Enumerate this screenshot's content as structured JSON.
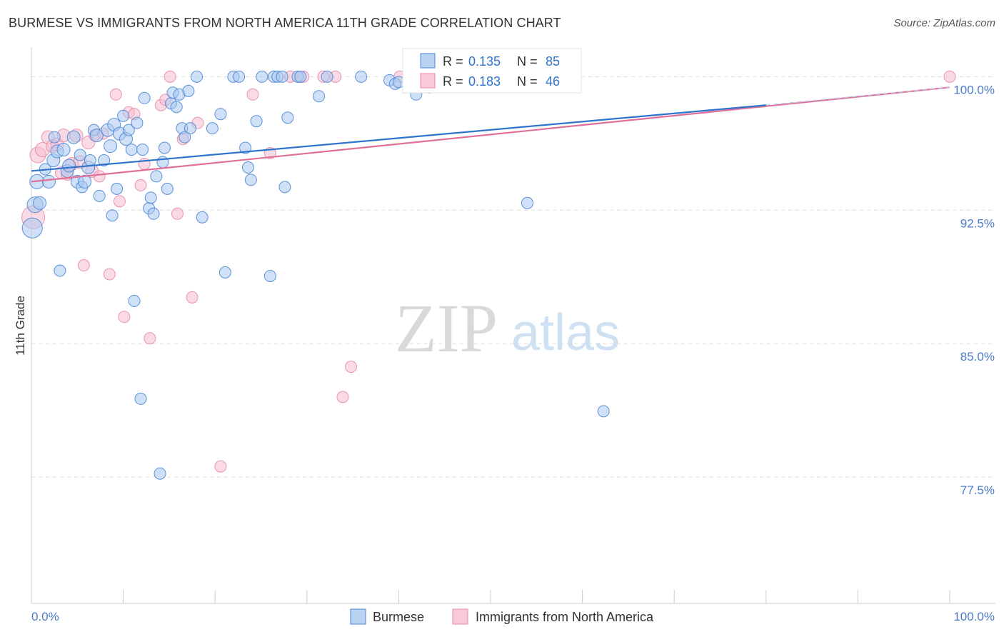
{
  "header": {
    "title": "BURMESE VS IMMIGRANTS FROM NORTH AMERICA 11TH GRADE CORRELATION CHART",
    "source": "Source: ZipAtlas.com"
  },
  "watermark": {
    "zip": "ZIP",
    "atlas": "atlas"
  },
  "colors": {
    "blue_fill": "#a9c8f0",
    "blue_stroke": "#4a86d4",
    "blue_line": "#2f74cc",
    "pink_fill": "#f6bdd0",
    "pink_stroke": "#e888a8",
    "pink_line": "#e0709a",
    "tick_label": "#4a7cc8",
    "grid": "#dddddd"
  },
  "legend_top": {
    "rows": [
      {
        "r_label": "R = ",
        "r_value": "0.135",
        "n_label": "N = ",
        "n_value": "85"
      },
      {
        "r_label": "R = ",
        "r_value": "0.183",
        "n_label": "N = ",
        "n_value": "46"
      }
    ]
  },
  "chart_data": {
    "type": "scatter",
    "title": "BURMESE VS IMMIGRANTS FROM NORTH AMERICA 11TH GRADE CORRELATION CHART",
    "xlabel": "",
    "ylabel": "11th Grade",
    "xlim": [
      0,
      100
    ],
    "ylim": [
      70.4,
      101.5
    ],
    "x_tick_labels": [
      "0.0%",
      "100.0%"
    ],
    "y_ticks": [
      77.5,
      85.0,
      92.5,
      100.0
    ],
    "y_tick_labels": [
      "77.5%",
      "85.0%",
      "92.5%",
      "100.0%"
    ],
    "legend_position": "top-center",
    "series": [
      {
        "name": "Burmese",
        "r": 0.135,
        "n": 85,
        "trend": {
          "x0": 0,
          "y0": 94.7,
          "x1": 80,
          "y1": 98.4,
          "dash_to": 100,
          "dash_y": 99.4
        },
        "points": [
          [
            0.1,
            91.5
          ],
          [
            0.4,
            92.8
          ],
          [
            0.6,
            94.1
          ],
          [
            0.9,
            92.9
          ],
          [
            1.5,
            94.8
          ],
          [
            1.9,
            94.1
          ],
          [
            2.4,
            95.3
          ],
          [
            2.5,
            96.6
          ],
          [
            2.8,
            95.8
          ],
          [
            3.1,
            89.1
          ],
          [
            3.5,
            95.9
          ],
          [
            3.9,
            94.7
          ],
          [
            4.1,
            95.0
          ],
          [
            4.6,
            96.6
          ],
          [
            5.0,
            94.1
          ],
          [
            5.3,
            95.6
          ],
          [
            5.5,
            93.8
          ],
          [
            5.8,
            94.1
          ],
          [
            6.2,
            94.9
          ],
          [
            6.4,
            95.3
          ],
          [
            6.8,
            97.0
          ],
          [
            7.1,
            96.7
          ],
          [
            7.4,
            93.3
          ],
          [
            7.9,
            95.3
          ],
          [
            8.3,
            97.0
          ],
          [
            8.6,
            96.1
          ],
          [
            8.8,
            92.2
          ],
          [
            9.0,
            97.3
          ],
          [
            9.3,
            93.7
          ],
          [
            9.6,
            96.8
          ],
          [
            10.0,
            97.8
          ],
          [
            10.3,
            96.5
          ],
          [
            10.6,
            97.0
          ],
          [
            10.9,
            95.9
          ],
          [
            11.2,
            87.4
          ],
          [
            11.5,
            97.4
          ],
          [
            11.9,
            81.9
          ],
          [
            12.1,
            95.9
          ],
          [
            12.3,
            98.8
          ],
          [
            12.8,
            92.6
          ],
          [
            13.0,
            93.2
          ],
          [
            13.3,
            92.3
          ],
          [
            13.6,
            94.4
          ],
          [
            14.0,
            77.7
          ],
          [
            14.3,
            95.2
          ],
          [
            14.5,
            96.0
          ],
          [
            14.8,
            93.7
          ],
          [
            15.2,
            98.5
          ],
          [
            15.4,
            99.1
          ],
          [
            15.8,
            98.3
          ],
          [
            16.1,
            99.0
          ],
          [
            16.4,
            97.1
          ],
          [
            16.7,
            96.6
          ],
          [
            17.1,
            99.2
          ],
          [
            17.3,
            97.1
          ],
          [
            18.0,
            100.0
          ],
          [
            18.6,
            92.1
          ],
          [
            19.7,
            97.1
          ],
          [
            20.6,
            97.9
          ],
          [
            21.1,
            89.0
          ],
          [
            22.0,
            100.0
          ],
          [
            22.6,
            100.0
          ],
          [
            23.3,
            96.0
          ],
          [
            23.6,
            94.9
          ],
          [
            23.9,
            94.2
          ],
          [
            24.5,
            97.5
          ],
          [
            25.1,
            100.0
          ],
          [
            26.0,
            88.8
          ],
          [
            26.4,
            100.0
          ],
          [
            26.8,
            100.0
          ],
          [
            27.3,
            100.0
          ],
          [
            27.6,
            93.8
          ],
          [
            27.9,
            97.7
          ],
          [
            29.0,
            100.0
          ],
          [
            29.3,
            100.0
          ],
          [
            31.3,
            98.9
          ],
          [
            32.2,
            100.0
          ],
          [
            35.9,
            100.0
          ],
          [
            39.0,
            99.8
          ],
          [
            39.6,
            99.6
          ],
          [
            40.0,
            99.7
          ],
          [
            41.9,
            99.0
          ],
          [
            43.3,
            99.4
          ],
          [
            54.0,
            92.9
          ],
          [
            62.3,
            81.2
          ]
        ],
        "radii": [
          14,
          11,
          10,
          9,
          8,
          9,
          9,
          8,
          9,
          8,
          9,
          9,
          9,
          9,
          9,
          8,
          8,
          9,
          9,
          8,
          8,
          9,
          8,
          8,
          9,
          9,
          8,
          9,
          8,
          9,
          8,
          9,
          8,
          8,
          8,
          8,
          8,
          8,
          8,
          8,
          8,
          8,
          8,
          8,
          8,
          8,
          8,
          8,
          8,
          8,
          8,
          8,
          8,
          8,
          8,
          8,
          8,
          8,
          8,
          8,
          8,
          8,
          8,
          8,
          8,
          8,
          8,
          8,
          8,
          8,
          8,
          8,
          8,
          8,
          8,
          8,
          8,
          8,
          8,
          8,
          8,
          8,
          8,
          8,
          8
        ]
      },
      {
        "name": "Immigrants from North America",
        "r": 0.183,
        "n": 46,
        "trend": {
          "x0": 0,
          "y0": 94.1,
          "x1": 100,
          "y1": 99.4
        },
        "points": [
          [
            0.2,
            92.1
          ],
          [
            0.7,
            95.6
          ],
          [
            1.2,
            95.9
          ],
          [
            1.8,
            96.6
          ],
          [
            2.3,
            96.1
          ],
          [
            2.8,
            96.2
          ],
          [
            3.3,
            94.6
          ],
          [
            3.5,
            96.7
          ],
          [
            3.9,
            94.5
          ],
          [
            4.4,
            95.1
          ],
          [
            4.9,
            96.7
          ],
          [
            5.3,
            95.2
          ],
          [
            5.7,
            89.4
          ],
          [
            6.2,
            96.3
          ],
          [
            6.6,
            94.7
          ],
          [
            6.9,
            96.7
          ],
          [
            7.4,
            94.4
          ],
          [
            7.8,
            96.8
          ],
          [
            8.5,
            88.9
          ],
          [
            9.2,
            99.0
          ],
          [
            9.6,
            93.0
          ],
          [
            10.1,
            86.5
          ],
          [
            10.6,
            98.0
          ],
          [
            11.2,
            97.9
          ],
          [
            11.9,
            93.9
          ],
          [
            12.3,
            95.1
          ],
          [
            12.9,
            85.3
          ],
          [
            14.1,
            98.4
          ],
          [
            14.6,
            98.7
          ],
          [
            15.1,
            100.0
          ],
          [
            15.9,
            92.3
          ],
          [
            16.5,
            96.5
          ],
          [
            17.5,
            87.6
          ],
          [
            18.1,
            97.4
          ],
          [
            20.6,
            78.1
          ],
          [
            24.1,
            99.0
          ],
          [
            26.0,
            95.7
          ],
          [
            28.2,
            100.0
          ],
          [
            29.6,
            100.0
          ],
          [
            31.8,
            100.0
          ],
          [
            33.1,
            100.0
          ],
          [
            33.9,
            82.0
          ],
          [
            34.8,
            83.7
          ],
          [
            40.1,
            100.0
          ],
          [
            44.8,
            100.0
          ],
          [
            100.0,
            100.0
          ]
        ],
        "radii": [
          16,
          11,
          10,
          9,
          9,
          9,
          9,
          9,
          8,
          9,
          9,
          9,
          8,
          9,
          9,
          8,
          8,
          8,
          8,
          8,
          8,
          8,
          8,
          8,
          8,
          8,
          8,
          8,
          8,
          8,
          8,
          8,
          8,
          8,
          8,
          8,
          8,
          8,
          8,
          8,
          8,
          8,
          8,
          8,
          8,
          8
        ]
      }
    ]
  },
  "legend_bottom": {
    "items": [
      {
        "label": "Burmese"
      },
      {
        "label": "Immigrants from North America"
      }
    ]
  }
}
